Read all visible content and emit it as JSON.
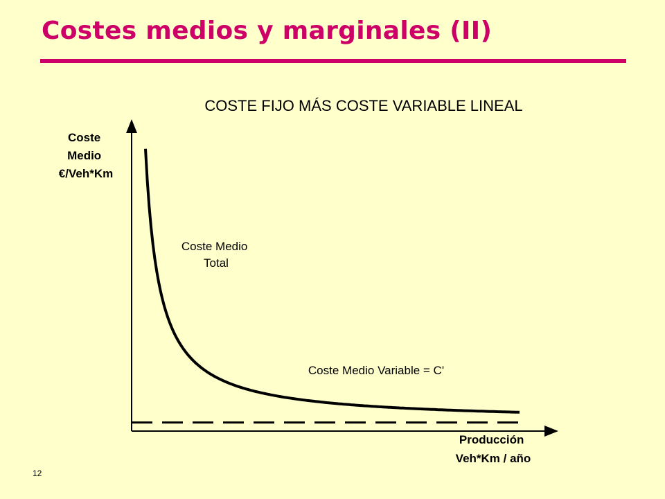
{
  "slide": {
    "title": "Costes medios y marginales (II)",
    "page_number": "12",
    "accent_color": "#cc0066",
    "background_color": "#ffffcc"
  },
  "chart_data": {
    "type": "line",
    "title": "COSTE FIJO MÁS COSTE VARIABLE LINEAL",
    "ylabel_lines": [
      "Coste",
      "Medio",
      "€/Veh*Km"
    ],
    "xlabel_lines": [
      "Producción",
      "Veh*Km / año"
    ],
    "axis_ticks": "none",
    "grid": false,
    "series": [
      {
        "name": "Coste Medio Total",
        "label_lines": [
          "Coste Medio",
          "Total"
        ],
        "style": "solid",
        "curve": "hyperbola",
        "x": [
          1,
          2,
          3,
          4,
          5,
          6,
          8,
          10,
          12,
          14,
          16,
          18,
          20,
          22,
          24,
          26,
          28
        ],
        "y": [
          33,
          17,
          11.7,
          9,
          7.4,
          6.3,
          5,
          4.2,
          3.7,
          3.3,
          3,
          2.8,
          2.6,
          2.5,
          2.4,
          2.3,
          2.2
        ]
      },
      {
        "name": "Coste Medio Variable = C'",
        "label_lines": [
          "Coste Medio Variable = C'"
        ],
        "style": "dashed",
        "x": [
          0,
          28
        ],
        "y": [
          1,
          1
        ]
      }
    ],
    "xlim": [
      0,
      30
    ],
    "ylim": [
      0,
      35
    ]
  }
}
